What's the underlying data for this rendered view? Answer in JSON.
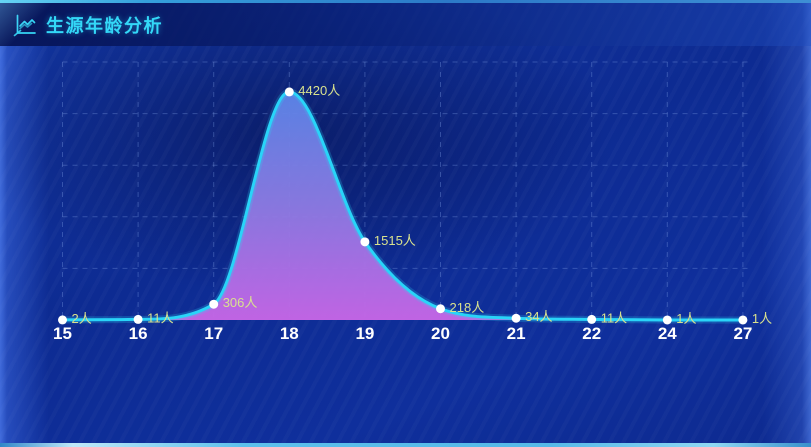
{
  "header": {
    "title": "生源年龄分析",
    "icon": "line-chart-icon"
  },
  "chart_data": {
    "type": "area",
    "title": "生源年龄分析",
    "categories": [
      "15",
      "16",
      "17",
      "18",
      "19",
      "20",
      "21",
      "22",
      "24",
      "27"
    ],
    "values": [
      2,
      11,
      306,
      4420,
      1515,
      218,
      34,
      11,
      1,
      1
    ],
    "labels": [
      "2人",
      "11人",
      "306人",
      "4420人",
      "1515人",
      "218人",
      "34人",
      "11人",
      "1人",
      "1人"
    ],
    "unit": "人",
    "xlabel": "",
    "ylabel": "",
    "ylim": [
      0,
      5000
    ],
    "y_splits": 5,
    "grid": "dashed",
    "legend_position": "none",
    "smooth": true,
    "colors": {
      "line": "#29d4f8",
      "line_glow": "#29d4f8",
      "marker": "#ffffff",
      "area_top": "#5b85e8",
      "area_mid": "#8f7ce4",
      "area_bottom": "#c766e6",
      "value_label": "#d8e18e",
      "axis_label": "#ffffff",
      "grid": "rgba(130,160,232,0.34)"
    }
  },
  "colors": {
    "panel_background": "#0d2b92",
    "header_dark": "#071a5e",
    "title": "#33d8f8",
    "top_edge_line": "#35a0dc",
    "bottom_edge_line": "#5cc0ec"
  }
}
